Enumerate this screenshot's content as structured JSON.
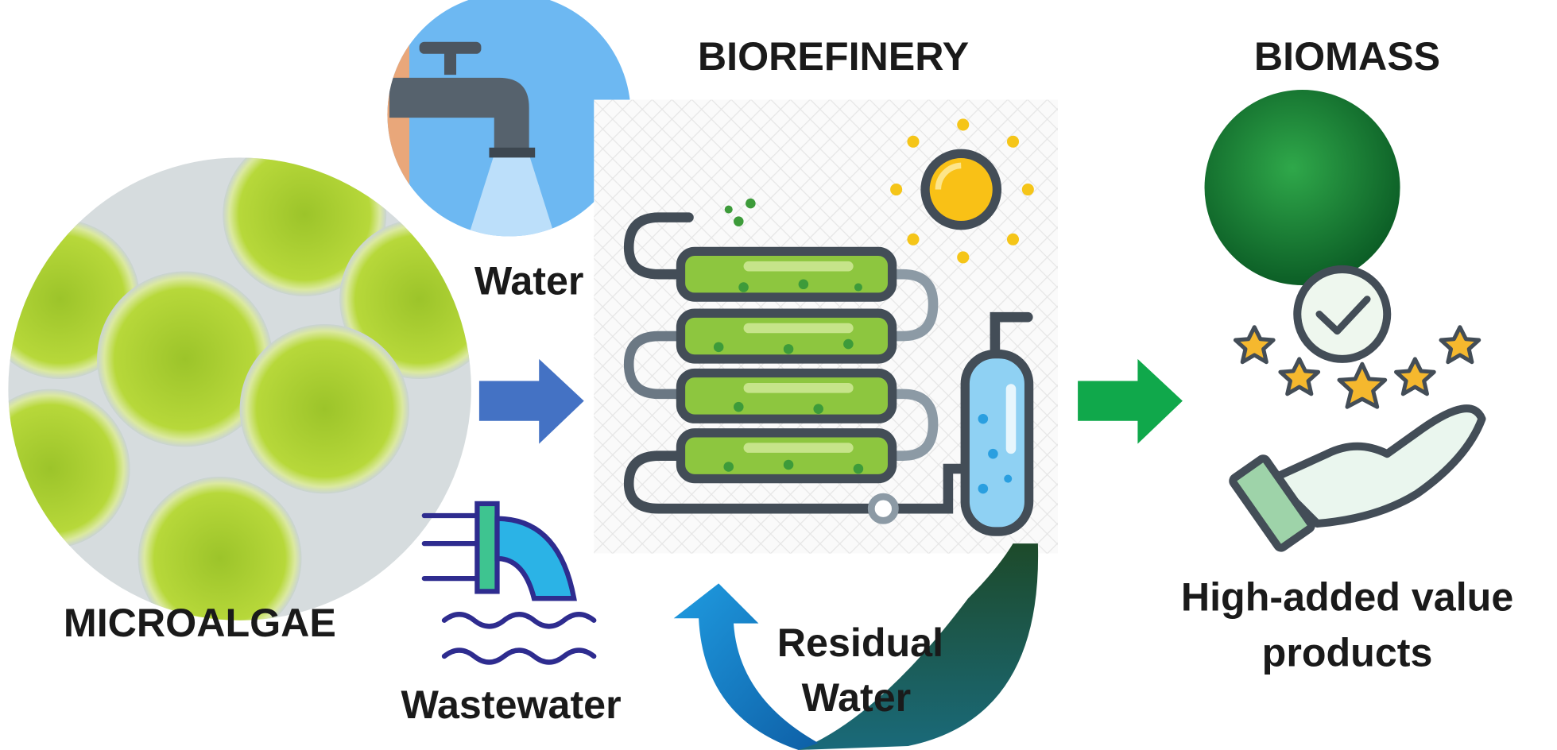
{
  "microalgae": {
    "label": "MICROALGAE"
  },
  "water": {
    "label": "Water"
  },
  "wastewater": {
    "label": "Wastewater"
  },
  "biorefinery": {
    "title": "BIOREFINERY"
  },
  "residual_water": {
    "lines": [
      "Residual",
      "Water"
    ]
  },
  "biomass": {
    "title": "BIOMASS"
  },
  "products": {
    "lines": [
      "High-added value",
      "products"
    ]
  }
}
